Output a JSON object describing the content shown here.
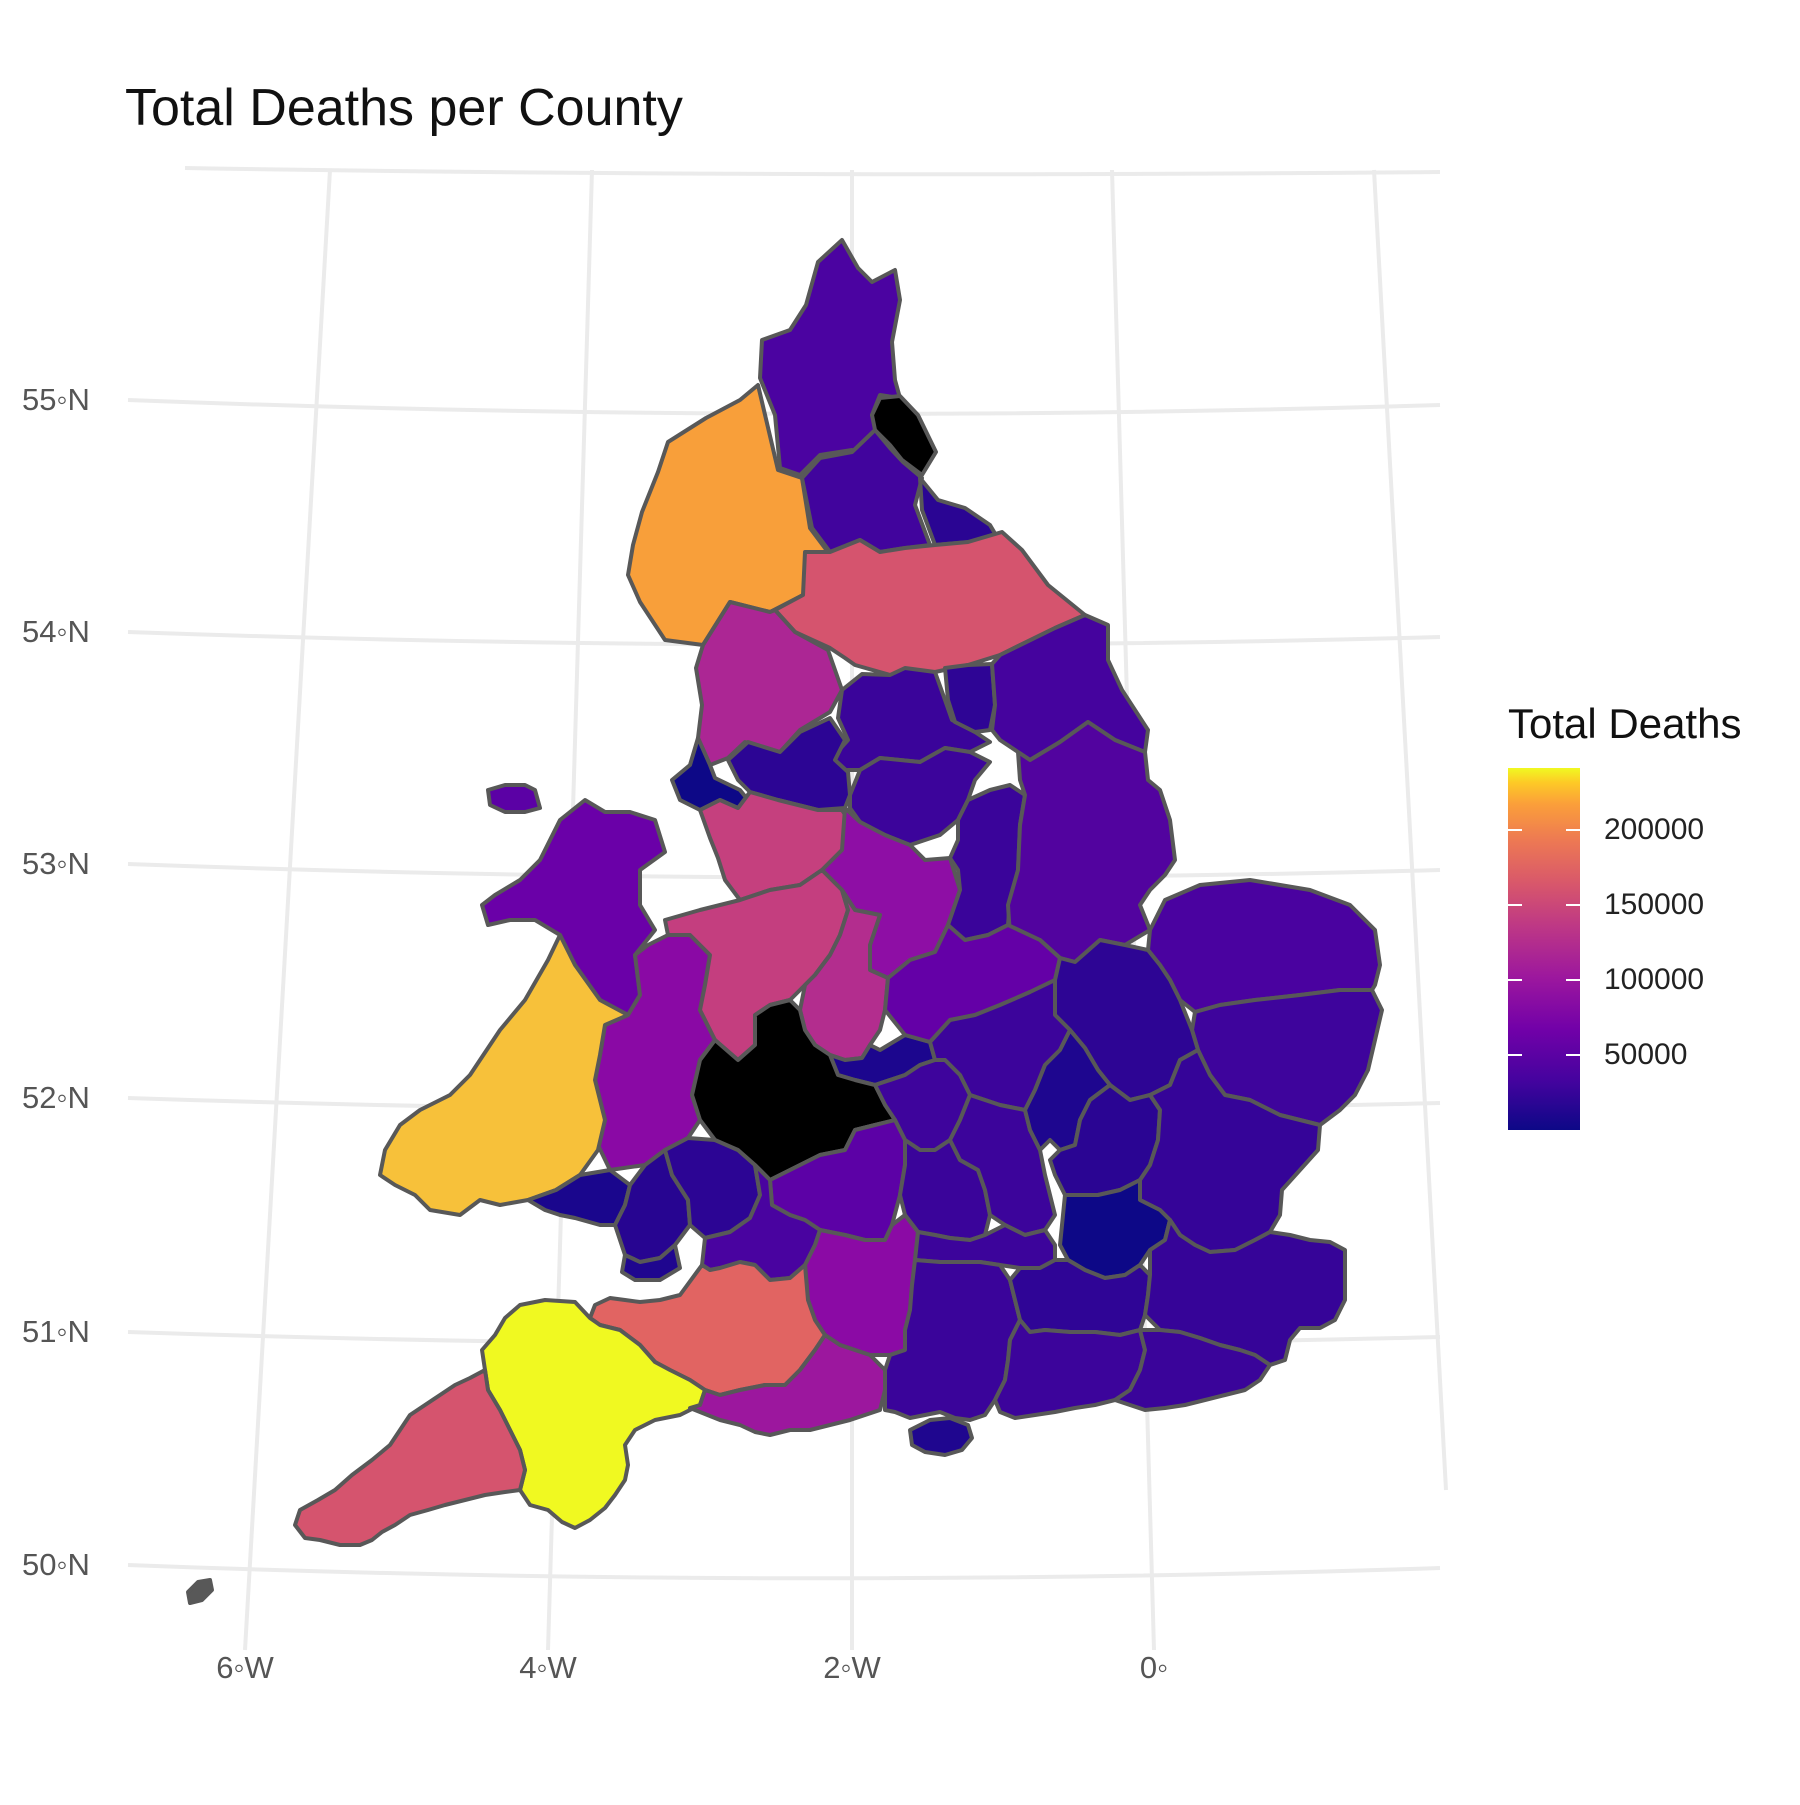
{
  "title": "Total Deaths per County",
  "legend": {
    "title": "Total Deaths",
    "labels": [
      "200000",
      "150000",
      "100000",
      "50000"
    ],
    "scale": "plasma",
    "colors": {
      "low": "#0d0887",
      "high": "#f0f921",
      "border": "#585858",
      "grid": "#ebebeb"
    }
  },
  "axes": {
    "lat_labels": [
      "55◦N",
      "54◦N",
      "53◦N",
      "52◦N",
      "51◦N",
      "50◦N"
    ],
    "lon_labels": [
      "6◦W",
      "4◦W",
      "2◦W",
      "0◦"
    ]
  },
  "regions": [
    {
      "name": "Northumberland",
      "color": "#4b03a1"
    },
    {
      "name": "Cumbria",
      "color": "#f89f3a"
    },
    {
      "name": "Tyne and Wear",
      "color": "#1b068d"
    },
    {
      "name": "Durham",
      "color": "#41049d"
    },
    {
      "name": "Teesside",
      "color": "#2a0593"
    },
    {
      "name": "North Yorkshire",
      "color": "#d5546e"
    },
    {
      "name": "Lancashire",
      "color": "#ac2694"
    },
    {
      "name": "West Yorkshire",
      "color": "#3a049a"
    },
    {
      "name": "York",
      "color": "#2e0595"
    },
    {
      "name": "East Yorkshire",
      "color": "#45039e"
    },
    {
      "name": "Merseyside",
      "color": "#0d0887"
    },
    {
      "name": "Greater Manchester",
      "color": "#2c0594"
    },
    {
      "name": "South Yorkshire",
      "color": "#3c049b"
    },
    {
      "name": "Cheshire",
      "color": "#c5407e"
    },
    {
      "name": "Derbyshire",
      "color": "#8e0ea5"
    },
    {
      "name": "Nottinghamshire",
      "color": "#3a049a"
    },
    {
      "name": "Lincolnshire",
      "color": "#52039f"
    },
    {
      "name": "North Wales",
      "color": "#6a00a8"
    },
    {
      "name": "Powys",
      "color": "#8a09a5"
    },
    {
      "name": "Shropshire",
      "color": "#c43e7f"
    },
    {
      "name": "Staffordshire",
      "color": "#b32d8e"
    },
    {
      "name": "West Midlands",
      "color": "#1c068e"
    },
    {
      "name": "Leicestershire",
      "color": "#6400a7"
    },
    {
      "name": "Norfolk",
      "color": "#4a02a0"
    },
    {
      "name": "Dyfed",
      "color": "#f7c13a"
    },
    {
      "name": "Herefordshire and Worcestershire",
      "color": "#8b0aa5"
    },
    {
      "name": "Warwickshire",
      "color": "#3e049c"
    },
    {
      "name": "Northamptonshire",
      "color": "#3c049b"
    },
    {
      "name": "Cambridgeshire",
      "color": "#2d0594"
    },
    {
      "name": "Suffolk",
      "color": "#3e049c"
    },
    {
      "name": "West Glamorgan",
      "color": "#1a068d"
    },
    {
      "name": "Mid Glamorgan",
      "color": "#270591"
    },
    {
      "name": "Gwent",
      "color": "#2c0594"
    },
    {
      "name": "South Glamorgan",
      "color": "#1f068f"
    },
    {
      "name": "Gloucestershire",
      "color": "#5c01a6"
    },
    {
      "name": "Oxfordshire",
      "color": "#3a049a"
    },
    {
      "name": "Buckinghamshire",
      "color": "#3c049b"
    },
    {
      "name": "Bedfordshire",
      "color": "#1e068f"
    },
    {
      "name": "Hertfordshire",
      "color": "#2a0593"
    },
    {
      "name": "Essex",
      "color": "#350498"
    },
    {
      "name": "Greater London",
      "color": "#0d0887"
    },
    {
      "name": "Avon",
      "color": "#4903a0"
    },
    {
      "name": "Wiltshire",
      "color": "#8b0aa5"
    },
    {
      "name": "Berkshire",
      "color": "#3c049b"
    },
    {
      "name": "Somerset",
      "color": "#e16462"
    },
    {
      "name": "Devon",
      "color": "#f0f921"
    },
    {
      "name": "Cornwall",
      "color": "#d5546e"
    },
    {
      "name": "Dorset",
      "color": "#9c179e"
    },
    {
      "name": "Hampshire",
      "color": "#3a049a"
    },
    {
      "name": "Surrey",
      "color": "#2f0596"
    },
    {
      "name": "Kent",
      "color": "#360498"
    },
    {
      "name": "West Sussex",
      "color": "#3c049b"
    },
    {
      "name": "East Sussex",
      "color": "#3a049a"
    },
    {
      "name": "Isle of Wight",
      "color": "#1f068f"
    },
    {
      "name": "Anglesey",
      "color": "#5b01a5"
    },
    {
      "name": "Isles of Scilly",
      "color": "#585858"
    }
  ]
}
